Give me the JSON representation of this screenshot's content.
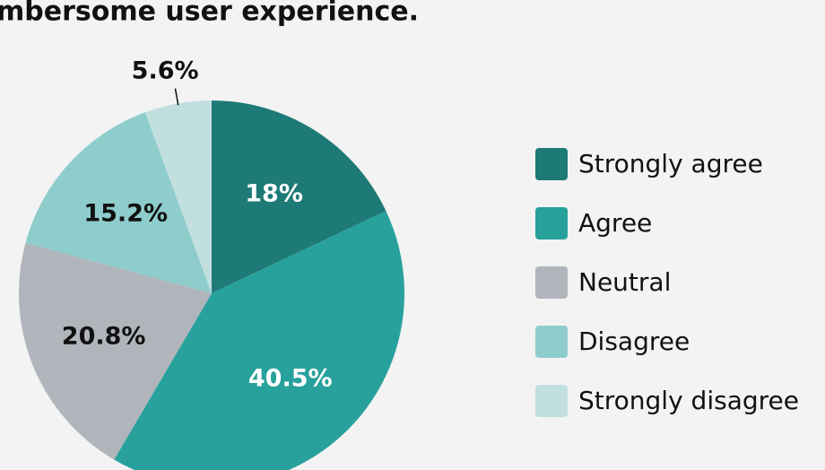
{
  "chart_data": {
    "type": "pie",
    "title": "mbersome user experience.",
    "categories": [
      "Strongly agree",
      "Agree",
      "Neutral",
      "Disagree",
      "Strongly disagree"
    ],
    "values": [
      18,
      40.5,
      20.8,
      15.2,
      5.6
    ],
    "value_labels": [
      "18%",
      "40.5%",
      "20.8%",
      "15.2%",
      "5.6%"
    ],
    "colors": [
      "#1e7a76",
      "#28a19c",
      "#b0b5bb",
      "#8ecdcc",
      "#c2dfe0"
    ],
    "legend": "right"
  }
}
